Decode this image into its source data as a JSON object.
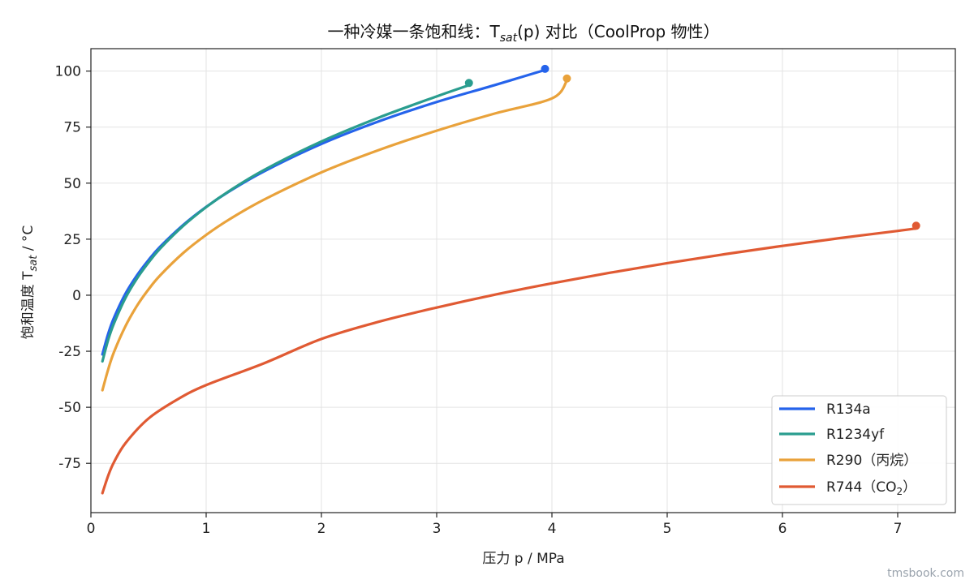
{
  "chart_data": {
    "type": "line",
    "title": {
      "main": "一种冷媒一条饱和线：T",
      "sub": "sat",
      "rest": "(p) 对比（CoolProp 物性）"
    },
    "xlabel": "压力 p / MPa",
    "ylabel": {
      "main": "饱和温度 T",
      "sub": "sat",
      "rest": " / °C"
    },
    "xlim": [
      0,
      7.5
    ],
    "ylim": [
      -97,
      110
    ],
    "xticks": [
      0,
      1,
      2,
      3,
      4,
      5,
      6,
      7
    ],
    "xtick_labels": [
      "0",
      "1",
      "2",
      "3",
      "4",
      "5",
      "6",
      "7"
    ],
    "yticks": [
      -75,
      -50,
      -25,
      0,
      25,
      50,
      75,
      100
    ],
    "ytick_labels": [
      "-75",
      "-50",
      "-25",
      "0",
      "25",
      "50",
      "75",
      "100"
    ],
    "grid": true,
    "legend_position": "bottom-right",
    "series": [
      {
        "name": "R134a",
        "color": "#2563eb",
        "x": [
          0.1,
          0.15,
          0.2,
          0.3,
          0.4,
          0.5,
          0.6,
          0.8,
          1.0,
          1.2,
          1.5,
          2.0,
          2.5,
          3.0,
          3.5,
          3.94
        ],
        "y": [
          -26.4,
          -17.2,
          -10.1,
          0.7,
          8.9,
          15.7,
          21.6,
          31.3,
          39.4,
          46.3,
          55.2,
          67.5,
          77.6,
          86.2,
          93.7,
          100.5
        ],
        "critical_point": {
          "x": 3.94,
          "y": 101
        }
      },
      {
        "name": "R1234yf",
        "color": "#2a9d8f",
        "x": [
          0.1,
          0.15,
          0.2,
          0.3,
          0.4,
          0.5,
          0.6,
          0.8,
          1.0,
          1.2,
          1.5,
          2.0,
          2.5,
          3.0,
          3.28
        ],
        "y": [
          -29.5,
          -19.9,
          -12.6,
          -1.2,
          7.5,
          14.6,
          20.8,
          30.9,
          39.3,
          46.5,
          55.8,
          68.6,
          79.3,
          88.7,
          93.7
        ],
        "critical_point": {
          "x": 3.28,
          "y": 94.7
        }
      },
      {
        "name": "R290（丙烷）",
        "color": "#e9a23b",
        "x": [
          0.1,
          0.15,
          0.2,
          0.3,
          0.4,
          0.5,
          0.6,
          0.8,
          1.0,
          1.2,
          1.5,
          2.0,
          2.5,
          3.0,
          3.5,
          4.0,
          4.13
        ],
        "y": [
          -42.4,
          -33.1,
          -25.4,
          -13.8,
          -4.7,
          2.6,
          8.8,
          18.8,
          26.9,
          33.8,
          42.6,
          54.8,
          64.8,
          73.4,
          81.0,
          87.8,
          95.7
        ],
        "critical_point": {
          "x": 4.13,
          "y": 96.7
        }
      },
      {
        "name": "R744（CO",
        "name_sub": "2",
        "name_rest": "）",
        "color": "#e05a33",
        "x": [
          0.1,
          0.15,
          0.2,
          0.3,
          0.5,
          0.75,
          1.0,
          1.5,
          2.0,
          2.5,
          3.0,
          3.5,
          4.0,
          4.5,
          5.0,
          5.5,
          6.0,
          6.5,
          7.0,
          7.16
        ],
        "y": [
          -88.3,
          -80.5,
          -74.5,
          -66.0,
          -55.0,
          -46.5,
          -40.1,
          -30.4,
          -19.5,
          -11.8,
          -5.5,
          0.2,
          5.3,
          10.0,
          14.3,
          18.3,
          22.0,
          25.5,
          28.7,
          29.8
        ],
        "critical_point": {
          "x": 7.16,
          "y": 31.0
        }
      }
    ]
  },
  "watermark": "tmsbook.com"
}
